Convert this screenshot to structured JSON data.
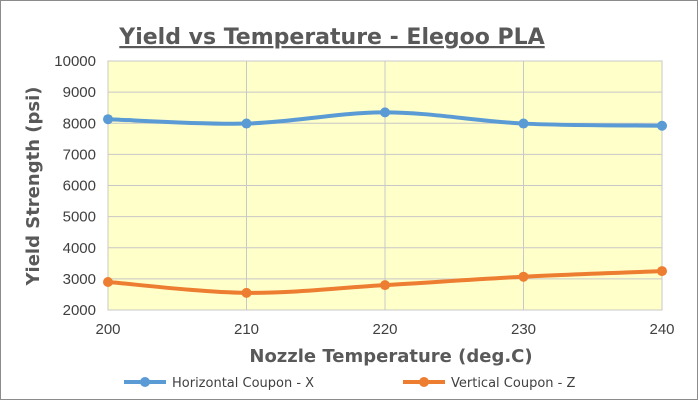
{
  "chart_data": {
    "type": "line",
    "title": "Yield vs Temperature -  Elegoo PLA",
    "xlabel": "Nozzle Temperature (deg.C)",
    "ylabel": "Yield Strength (psi)",
    "x": [
      200,
      210,
      220,
      230,
      240
    ],
    "xlim": [
      200,
      240
    ],
    "ylim": [
      2000,
      10000
    ],
    "y_ticks": [
      2000,
      3000,
      4000,
      5000,
      6000,
      7000,
      8000,
      9000,
      10000
    ],
    "grid": true,
    "plot_background": "#ffffc9",
    "legend_position": "bottom",
    "series": [
      {
        "name": "Horizontal Coupon - X",
        "color": "#5b9bd5",
        "values": [
          8130,
          7990,
          8350,
          7990,
          7920
        ]
      },
      {
        "name": "Vertical Coupon - Z",
        "color": "#ed7d31",
        "values": [
          2900,
          2550,
          2800,
          3070,
          3250
        ]
      }
    ]
  }
}
